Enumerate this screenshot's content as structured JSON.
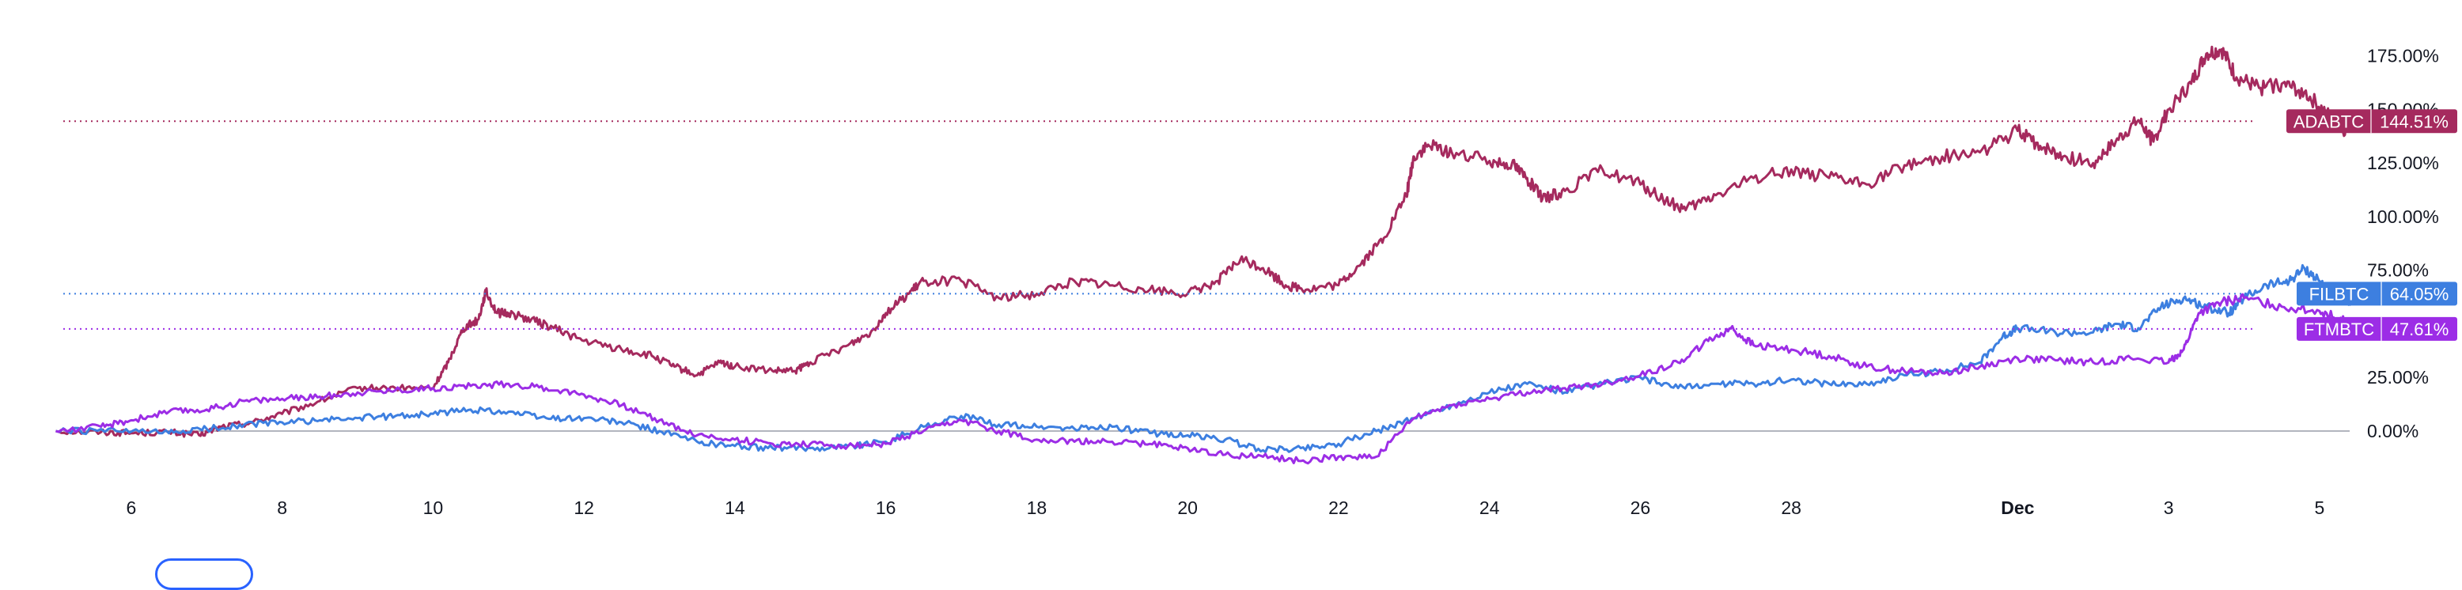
{
  "chart_data": {
    "type": "line",
    "x_labels": [
      "6",
      "8",
      "10",
      "12",
      "14",
      "16",
      "18",
      "20",
      "22",
      "24",
      "26",
      "28",
      "Dec",
      "3",
      "5"
    ],
    "x_label_days": [
      6,
      8,
      10,
      12,
      14,
      16,
      18,
      20,
      22,
      24,
      26,
      28,
      31,
      33,
      35
    ],
    "x_range": [
      5.1,
      35.4
    ],
    "y_range": [
      -24,
      190
    ],
    "y_ticks": [
      0,
      25,
      50,
      75,
      100,
      125,
      150,
      175
    ],
    "y_tick_labels": [
      "0.00%",
      "25.00%",
      "50.00%",
      "75.00%",
      "100.00%",
      "125.00%",
      "150.00%",
      "175.00%"
    ],
    "zero_line": true,
    "series": [
      {
        "name": "ADABTC",
        "color": "#a52a5e",
        "last_label": "144.51%",
        "last_value": 144.51,
        "points": [
          [
            5,
            0
          ],
          [
            5.6,
            -0.5
          ],
          [
            6,
            -1
          ],
          [
            6.5,
            -0.5
          ],
          [
            6.9,
            -2
          ],
          [
            7.2,
            2
          ],
          [
            7.6,
            4
          ],
          [
            8,
            8
          ],
          [
            8.5,
            14
          ],
          [
            9,
            20
          ],
          [
            9.5,
            20
          ],
          [
            10,
            20
          ],
          [
            10.2,
            32
          ],
          [
            10.4,
            48
          ],
          [
            10.6,
            52
          ],
          [
            10.7,
            65
          ],
          [
            10.85,
            55
          ],
          [
            11,
            55
          ],
          [
            11.3,
            52
          ],
          [
            11.6,
            48
          ],
          [
            12,
            42
          ],
          [
            12.5,
            38
          ],
          [
            12.9,
            35
          ],
          [
            13.2,
            30
          ],
          [
            13.5,
            26
          ],
          [
            13.8,
            32
          ],
          [
            14,
            30
          ],
          [
            14.5,
            28
          ],
          [
            14.8,
            28
          ],
          [
            15,
            32
          ],
          [
            15.5,
            40
          ],
          [
            15.8,
            46
          ],
          [
            16,
            55
          ],
          [
            16.3,
            64
          ],
          [
            16.5,
            70
          ],
          [
            17,
            70
          ],
          [
            17.5,
            62
          ],
          [
            18,
            64
          ],
          [
            18.5,
            70
          ],
          [
            19,
            68
          ],
          [
            19.5,
            66
          ],
          [
            20,
            64
          ],
          [
            20.4,
            70
          ],
          [
            20.7,
            80
          ],
          [
            21,
            76
          ],
          [
            21.3,
            68
          ],
          [
            21.6,
            66
          ],
          [
            22,
            68
          ],
          [
            22.3,
            78
          ],
          [
            22.6,
            90
          ],
          [
            22.9,
            110
          ],
          [
            23,
            128
          ],
          [
            23.2,
            133
          ],
          [
            23.5,
            130
          ],
          [
            24,
            126
          ],
          [
            24.3,
            125
          ],
          [
            24.5,
            118
          ],
          [
            24.7,
            108
          ],
          [
            25,
            112
          ],
          [
            25.5,
            122
          ],
          [
            26,
            115
          ],
          [
            26.3,
            108
          ],
          [
            26.6,
            103
          ],
          [
            27,
            110
          ],
          [
            27.5,
            118
          ],
          [
            28,
            122
          ],
          [
            28.5,
            118
          ],
          [
            29,
            115
          ],
          [
            29.5,
            124
          ],
          [
            30,
            128
          ],
          [
            30.5,
            130
          ],
          [
            31,
            140
          ],
          [
            31.3,
            133
          ],
          [
            31.6,
            128
          ],
          [
            32,
            125
          ],
          [
            32.3,
            135
          ],
          [
            32.6,
            145
          ],
          [
            32.8,
            135
          ],
          [
            33,
            150
          ],
          [
            33.3,
            162
          ],
          [
            33.5,
            176
          ],
          [
            33.7,
            178
          ],
          [
            33.9,
            165
          ],
          [
            34.2,
            160
          ],
          [
            34.5,
            162
          ],
          [
            34.8,
            158
          ],
          [
            35.1,
            148
          ],
          [
            35.3,
            140
          ],
          [
            35.5,
            144.51
          ]
        ]
      },
      {
        "name": "FILBTC",
        "color": "#3d7fe0",
        "last_label": "64.05%",
        "last_value": 64.05,
        "points": [
          [
            5,
            0
          ],
          [
            5.8,
            0
          ],
          [
            6.5,
            -1
          ],
          [
            7,
            1
          ],
          [
            7.5,
            3
          ],
          [
            8,
            4
          ],
          [
            8.5,
            5
          ],
          [
            9,
            6
          ],
          [
            9.5,
            7
          ],
          [
            10,
            8
          ],
          [
            10.5,
            10
          ],
          [
            11,
            9
          ],
          [
            11.5,
            6
          ],
          [
            12,
            6
          ],
          [
            12.5,
            4
          ],
          [
            13,
            0
          ],
          [
            13.5,
            -5
          ],
          [
            14,
            -7
          ],
          [
            14.5,
            -8
          ],
          [
            15,
            -8
          ],
          [
            15.5,
            -7
          ],
          [
            16,
            -5
          ],
          [
            16.5,
            2
          ],
          [
            17,
            7
          ],
          [
            17.5,
            3
          ],
          [
            18,
            2
          ],
          [
            18.5,
            1
          ],
          [
            19,
            2
          ],
          [
            19.5,
            -1
          ],
          [
            20,
            -2
          ],
          [
            20.5,
            -4
          ],
          [
            21,
            -9
          ],
          [
            21.5,
            -8
          ],
          [
            22,
            -6
          ],
          [
            22.5,
            0
          ],
          [
            23,
            6
          ],
          [
            23.5,
            12
          ],
          [
            24,
            18
          ],
          [
            24.5,
            22
          ],
          [
            25,
            18
          ],
          [
            25.5,
            22
          ],
          [
            26,
            25
          ],
          [
            26.5,
            20
          ],
          [
            27,
            22
          ],
          [
            27.5,
            22
          ],
          [
            28,
            24
          ],
          [
            28.5,
            22
          ],
          [
            29,
            22
          ],
          [
            29.5,
            26
          ],
          [
            30,
            28
          ],
          [
            30.5,
            32
          ],
          [
            30.8,
            44
          ],
          [
            31,
            48
          ],
          [
            31.5,
            46
          ],
          [
            32,
            46
          ],
          [
            32.3,
            50
          ],
          [
            32.6,
            48
          ],
          [
            32.9,
            58
          ],
          [
            33.2,
            62
          ],
          [
            33.5,
            58
          ],
          [
            33.8,
            55
          ],
          [
            34,
            62
          ],
          [
            34.3,
            68
          ],
          [
            34.6,
            70
          ],
          [
            34.8,
            76
          ],
          [
            35,
            70
          ],
          [
            35.2,
            64
          ],
          [
            35.4,
            60
          ],
          [
            35.5,
            64.05
          ]
        ]
      },
      {
        "name": "FTMBTC",
        "color": "#9c2de6",
        "last_label": "47.61%",
        "last_value": 47.61,
        "points": [
          [
            5,
            0
          ],
          [
            5.6,
            2
          ],
          [
            6,
            5
          ],
          [
            6.5,
            9
          ],
          [
            7,
            10
          ],
          [
            7.5,
            14
          ],
          [
            8,
            15
          ],
          [
            8.5,
            16
          ],
          [
            9,
            18
          ],
          [
            9.5,
            19
          ],
          [
            10,
            20
          ],
          [
            10.5,
            21
          ],
          [
            11,
            22
          ],
          [
            11.5,
            20
          ],
          [
            12,
            17
          ],
          [
            12.5,
            12
          ],
          [
            13,
            5
          ],
          [
            13.5,
            -2
          ],
          [
            14,
            -4
          ],
          [
            14.5,
            -6
          ],
          [
            15,
            -6
          ],
          [
            15.5,
            -7
          ],
          [
            16,
            -6
          ],
          [
            16.5,
            0
          ],
          [
            17,
            5
          ],
          [
            17.5,
            0
          ],
          [
            18,
            -4
          ],
          [
            18.5,
            -5
          ],
          [
            19,
            -5
          ],
          [
            19.5,
            -6
          ],
          [
            20,
            -8
          ],
          [
            20.5,
            -11
          ],
          [
            21,
            -12
          ],
          [
            21.5,
            -14
          ],
          [
            22,
            -12
          ],
          [
            22.5,
            -12
          ],
          [
            23,
            6
          ],
          [
            23.5,
            12
          ],
          [
            24,
            15
          ],
          [
            24.5,
            18
          ],
          [
            25,
            20
          ],
          [
            25.5,
            22
          ],
          [
            26,
            26
          ],
          [
            26.5,
            32
          ],
          [
            26.9,
            42
          ],
          [
            27.2,
            48
          ],
          [
            27.5,
            40
          ],
          [
            28,
            38
          ],
          [
            28.5,
            35
          ],
          [
            29,
            30
          ],
          [
            29.5,
            28
          ],
          [
            30,
            27
          ],
          [
            30.5,
            30
          ],
          [
            31,
            34
          ],
          [
            31.5,
            33
          ],
          [
            32,
            32
          ],
          [
            32.5,
            34
          ],
          [
            33,
            32
          ],
          [
            33.2,
            38
          ],
          [
            33.4,
            55
          ],
          [
            33.7,
            60
          ],
          [
            34,
            62
          ],
          [
            34.5,
            58
          ],
          [
            35,
            56
          ],
          [
            35.3,
            52
          ],
          [
            35.5,
            47.61
          ]
        ]
      }
    ]
  }
}
